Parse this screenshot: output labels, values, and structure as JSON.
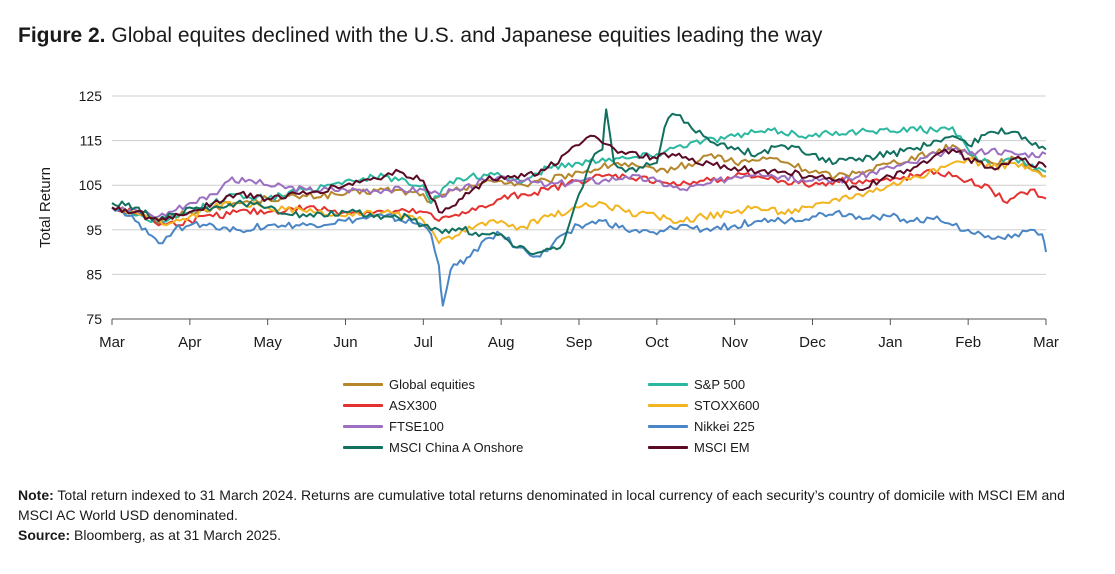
{
  "figure": {
    "label": "Figure 2.",
    "title": "Global equites declined with the U.S. and Japanese equities leading the way"
  },
  "notes": {
    "note_label": "Note:",
    "note_text": "Total return indexed to 31 March 2024. Returns are cumulative total returns denominated in local currency of each security’s country of domicile with MSCI EM and MSCI AC World USD denominated.",
    "source_label": "Source:",
    "source_text": "Bloomberg, as at 31 March 2025."
  },
  "chart_data": {
    "type": "line",
    "ylabel": "Total Return",
    "xlabel": "",
    "ylim": [
      75,
      125
    ],
    "yticks": [
      75,
      85,
      95,
      105,
      115,
      125
    ],
    "grid": true,
    "x_ticks": [
      "Mar",
      "Apr",
      "May",
      "Jun",
      "Jul",
      "Aug",
      "Sep",
      "Oct",
      "Nov",
      "Dec",
      "Jan",
      "Feb",
      "Mar"
    ],
    "x_domain": [
      0,
      12
    ],
    "series": [
      {
        "name": "Global equities",
        "color": "#b5862a",
        "points": [
          [
            0,
            100
          ],
          [
            0.5,
            98
          ],
          [
            0.6,
            96.5
          ],
          [
            0.8,
            98
          ],
          [
            1,
            99
          ],
          [
            1.3,
            100
          ],
          [
            1.6,
            101
          ],
          [
            2,
            102
          ],
          [
            2.5,
            102.5
          ],
          [
            3,
            103
          ],
          [
            3.5,
            104
          ],
          [
            4,
            103
          ],
          [
            4.1,
            101
          ],
          [
            4.3,
            103
          ],
          [
            4.6,
            105
          ],
          [
            5,
            106
          ],
          [
            5.3,
            105
          ],
          [
            5.6,
            106
          ],
          [
            6,
            108
          ],
          [
            6.2,
            108.5
          ],
          [
            6.5,
            110
          ],
          [
            7,
            108
          ],
          [
            7.5,
            110
          ],
          [
            7.7,
            112
          ],
          [
            8,
            110
          ],
          [
            8.5,
            111
          ],
          [
            9,
            108
          ],
          [
            9.3,
            107
          ],
          [
            9.6,
            108
          ],
          [
            10,
            110
          ],
          [
            10.5,
            112
          ],
          [
            10.8,
            114
          ],
          [
            11,
            112
          ],
          [
            11.3,
            110
          ],
          [
            11.6,
            111
          ],
          [
            12,
            107
          ]
        ]
      },
      {
        "name": "S&P 500",
        "color": "#2bb7a0",
        "points": [
          [
            0,
            100
          ],
          [
            0.4,
            98
          ],
          [
            0.6,
            96
          ],
          [
            1,
            99
          ],
          [
            1.3,
            101
          ],
          [
            1.6,
            103
          ],
          [
            2,
            102
          ],
          [
            2.5,
            104
          ],
          [
            3,
            106
          ],
          [
            3.5,
            107
          ],
          [
            4,
            105
          ],
          [
            4.1,
            101
          ],
          [
            4.3,
            105
          ],
          [
            4.6,
            107
          ],
          [
            5,
            107
          ],
          [
            5.3,
            106
          ],
          [
            5.6,
            109
          ],
          [
            6,
            110
          ],
          [
            6.3,
            111
          ],
          [
            6.6,
            111
          ],
          [
            7,
            112
          ],
          [
            7.3,
            114
          ],
          [
            7.6,
            115
          ],
          [
            8,
            116
          ],
          [
            8.3,
            117
          ],
          [
            8.6,
            117
          ],
          [
            9,
            116
          ],
          [
            9.3,
            117
          ],
          [
            9.6,
            117
          ],
          [
            10,
            117
          ],
          [
            10.3,
            118
          ],
          [
            10.6,
            117
          ],
          [
            10.8,
            118
          ],
          [
            11,
            113
          ],
          [
            11.3,
            109
          ],
          [
            11.6,
            111
          ],
          [
            12,
            108
          ]
        ]
      },
      {
        "name": "ASX300",
        "color": "#e3322f",
        "points": [
          [
            0,
            100
          ],
          [
            0.5,
            98
          ],
          [
            0.6,
            96
          ],
          [
            1,
            97
          ],
          [
            1.3,
            98
          ],
          [
            1.6,
            99
          ],
          [
            2,
            99
          ],
          [
            2.5,
            100
          ],
          [
            3,
            99
          ],
          [
            3.5,
            99
          ],
          [
            4,
            99
          ],
          [
            4.2,
            97
          ],
          [
            4.5,
            99
          ],
          [
            4.8,
            100
          ],
          [
            5,
            102
          ],
          [
            5.3,
            103
          ],
          [
            5.6,
            104
          ],
          [
            6,
            106
          ],
          [
            6.3,
            107
          ],
          [
            6.6,
            107
          ],
          [
            7,
            106
          ],
          [
            7.3,
            105
          ],
          [
            7.6,
            106
          ],
          [
            8,
            107
          ],
          [
            8.3,
            107
          ],
          [
            8.6,
            106
          ],
          [
            9,
            105
          ],
          [
            9.3,
            106
          ],
          [
            9.6,
            106
          ],
          [
            10,
            106
          ],
          [
            10.3,
            107
          ],
          [
            10.6,
            108
          ],
          [
            10.8,
            107
          ],
          [
            11,
            106
          ],
          [
            11.3,
            104
          ],
          [
            11.5,
            101
          ],
          [
            11.8,
            104
          ],
          [
            12,
            102
          ]
        ]
      },
      {
        "name": "STOXX600",
        "color": "#f2b41f",
        "points": [
          [
            0,
            100
          ],
          [
            0.5,
            98
          ],
          [
            0.7,
            96
          ],
          [
            1,
            98
          ],
          [
            1.3,
            100
          ],
          [
            1.6,
            101
          ],
          [
            2,
            100
          ],
          [
            2.5,
            99
          ],
          [
            3,
            98
          ],
          [
            3.5,
            99
          ],
          [
            4,
            97
          ],
          [
            4.2,
            92
          ],
          [
            4.5,
            95
          ],
          [
            4.8,
            96
          ],
          [
            5,
            97
          ],
          [
            5.2,
            95
          ],
          [
            5.6,
            98
          ],
          [
            6,
            100
          ],
          [
            6.3,
            101
          ],
          [
            6.6,
            99
          ],
          [
            7,
            98
          ],
          [
            7.3,
            97
          ],
          [
            7.6,
            98
          ],
          [
            8,
            99
          ],
          [
            8.3,
            100
          ],
          [
            8.6,
            99
          ],
          [
            9,
            100
          ],
          [
            9.3,
            102
          ],
          [
            9.6,
            103
          ],
          [
            10,
            105
          ],
          [
            10.3,
            107
          ],
          [
            10.6,
            108
          ],
          [
            10.8,
            110
          ],
          [
            11,
            111
          ],
          [
            11.3,
            109
          ],
          [
            11.6,
            110
          ],
          [
            12,
            107
          ]
        ]
      },
      {
        "name": "FTSE100",
        "color": "#9b6fc2",
        "points": [
          [
            0,
            100
          ],
          [
            0.4,
            99
          ],
          [
            0.6,
            98
          ],
          [
            1,
            101
          ],
          [
            1.3,
            103
          ],
          [
            1.5,
            106
          ],
          [
            1.8,
            106
          ],
          [
            2,
            105
          ],
          [
            2.5,
            104
          ],
          [
            3,
            104
          ],
          [
            3.5,
            104
          ],
          [
            4,
            104
          ],
          [
            4.2,
            103
          ],
          [
            4.5,
            104
          ],
          [
            4.8,
            106
          ],
          [
            5,
            107
          ],
          [
            5.3,
            106
          ],
          [
            5.6,
            105
          ],
          [
            6,
            106
          ],
          [
            6.3,
            106
          ],
          [
            6.6,
            107
          ],
          [
            7,
            106
          ],
          [
            7.3,
            104
          ],
          [
            7.6,
            105
          ],
          [
            8,
            107
          ],
          [
            8.3,
            108
          ],
          [
            8.6,
            107
          ],
          [
            9,
            106
          ],
          [
            9.3,
            106
          ],
          [
            9.6,
            107
          ],
          [
            10,
            109
          ],
          [
            10.3,
            110
          ],
          [
            10.6,
            112
          ],
          [
            10.8,
            113
          ],
          [
            11,
            112
          ],
          [
            11.3,
            113
          ],
          [
            11.6,
            112
          ],
          [
            12,
            112
          ]
        ]
      },
      {
        "name": "Nikkei 225",
        "color": "#4a86c5",
        "points": [
          [
            0,
            100
          ],
          [
            0.3,
            97
          ],
          [
            0.6,
            92
          ],
          [
            0.8,
            95
          ],
          [
            1,
            96
          ],
          [
            1.3,
            96
          ],
          [
            1.6,
            95
          ],
          [
            2,
            96
          ],
          [
            2.5,
            96
          ],
          [
            3,
            97
          ],
          [
            3.5,
            98
          ],
          [
            4,
            96
          ],
          [
            4.1,
            94
          ],
          [
            4.2,
            87
          ],
          [
            4.25,
            78
          ],
          [
            4.35,
            86
          ],
          [
            4.6,
            89
          ],
          [
            4.8,
            93
          ],
          [
            5,
            94
          ],
          [
            5.2,
            91
          ],
          [
            5.5,
            89
          ],
          [
            5.8,
            94
          ],
          [
            6,
            96
          ],
          [
            6.3,
            97
          ],
          [
            6.6,
            95
          ],
          [
            7,
            94
          ],
          [
            7.3,
            96
          ],
          [
            7.6,
            95
          ],
          [
            8,
            96
          ],
          [
            8.3,
            97
          ],
          [
            8.6,
            97
          ],
          [
            9,
            98
          ],
          [
            9.3,
            99
          ],
          [
            9.6,
            98
          ],
          [
            10,
            98
          ],
          [
            10.3,
            97
          ],
          [
            10.6,
            98
          ],
          [
            10.8,
            96
          ],
          [
            11,
            95
          ],
          [
            11.3,
            93
          ],
          [
            11.6,
            94
          ],
          [
            11.8,
            95
          ],
          [
            11.95,
            94
          ],
          [
            12,
            90
          ]
        ]
      },
      {
        "name": "MSCI China A Onshore",
        "color": "#12705f",
        "points": [
          [
            0,
            101
          ],
          [
            0.3,
            100
          ],
          [
            0.6,
            97
          ],
          [
            1,
            100
          ],
          [
            1.3,
            100
          ],
          [
            1.6,
            101
          ],
          [
            2,
            100
          ],
          [
            2.5,
            98
          ],
          [
            3,
            99
          ],
          [
            3.5,
            98
          ],
          [
            3.8,
            98
          ],
          [
            4,
            96
          ],
          [
            4.2,
            95
          ],
          [
            4.5,
            95
          ],
          [
            4.8,
            94
          ],
          [
            5,
            94
          ],
          [
            5.2,
            91
          ],
          [
            5.5,
            90
          ],
          [
            5.8,
            92
          ],
          [
            6,
            103
          ],
          [
            6.2,
            112
          ],
          [
            6.3,
            113
          ],
          [
            6.35,
            122
          ],
          [
            6.45,
            110
          ],
          [
            6.6,
            108
          ],
          [
            7,
            110
          ],
          [
            7.1,
            118
          ],
          [
            7.2,
            121
          ],
          [
            7.4,
            119
          ],
          [
            7.6,
            116
          ],
          [
            8,
            113
          ],
          [
            8.3,
            112
          ],
          [
            8.6,
            114
          ],
          [
            9,
            112
          ],
          [
            9.3,
            110
          ],
          [
            9.6,
            111
          ],
          [
            10,
            112
          ],
          [
            10.3,
            113
          ],
          [
            10.6,
            115
          ],
          [
            10.8,
            116
          ],
          [
            11,
            114
          ],
          [
            11.3,
            117
          ],
          [
            11.6,
            117
          ],
          [
            12,
            113
          ]
        ]
      },
      {
        "name": "MSCI EM",
        "color": "#5a0a24",
        "points": [
          [
            0,
            100
          ],
          [
            0.3,
            99
          ],
          [
            0.6,
            97
          ],
          [
            1,
            99
          ],
          [
            1.3,
            101
          ],
          [
            1.6,
            103
          ],
          [
            2,
            102
          ],
          [
            2.5,
            103
          ],
          [
            3,
            105
          ],
          [
            3.5,
            107
          ],
          [
            3.7,
            108
          ],
          [
            4,
            106
          ],
          [
            4.2,
            99
          ],
          [
            4.5,
            102
          ],
          [
            4.8,
            106
          ],
          [
            5,
            107
          ],
          [
            5.3,
            107
          ],
          [
            5.6,
            109
          ],
          [
            6,
            114
          ],
          [
            6.2,
            116
          ],
          [
            6.4,
            114
          ],
          [
            6.6,
            112
          ],
          [
            7,
            111
          ],
          [
            7.2,
            112
          ],
          [
            7.5,
            110
          ],
          [
            8,
            109
          ],
          [
            8.3,
            108
          ],
          [
            8.6,
            108
          ],
          [
            9,
            107
          ],
          [
            9.3,
            106
          ],
          [
            9.6,
            104
          ],
          [
            10,
            107
          ],
          [
            10.3,
            109
          ],
          [
            10.6,
            112
          ],
          [
            10.8,
            113
          ],
          [
            11,
            111
          ],
          [
            11.3,
            109
          ],
          [
            11.6,
            111
          ],
          [
            12,
            109
          ]
        ]
      }
    ]
  },
  "legend_order": [
    [
      "Global equities",
      "S&P 500"
    ],
    [
      "ASX300",
      "STOXX600"
    ],
    [
      "FTSE100",
      "Nikkei 225"
    ],
    [
      "MSCI China A Onshore",
      "MSCI EM"
    ]
  ]
}
